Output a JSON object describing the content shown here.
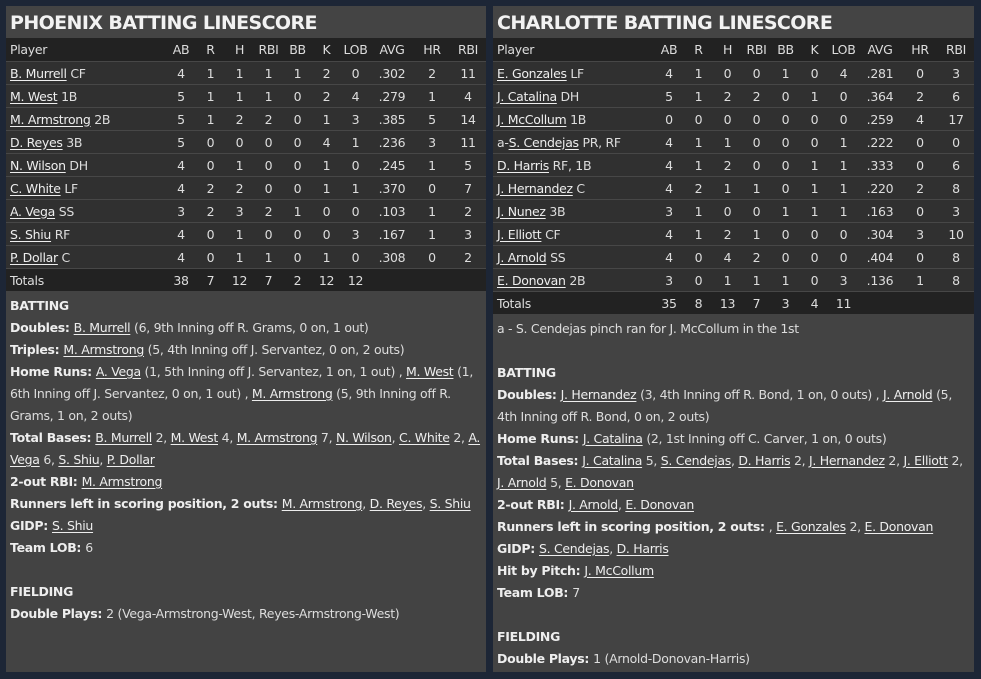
{
  "columns": [
    "Player",
    "AB",
    "R",
    "H",
    "RBI",
    "BB",
    "K",
    "LOB",
    "AVG",
    "HR",
    "RBI"
  ],
  "phoenix": {
    "title": "PHOENIX BATTING LINESCORE",
    "rows": [
      {
        "name": "B. Murrell",
        "pos": "CF",
        "stats": [
          "4",
          "1",
          "1",
          "1",
          "1",
          "2",
          "0",
          ".302",
          "2",
          "11"
        ]
      },
      {
        "name": "M. West",
        "pos": "1B",
        "stats": [
          "5",
          "1",
          "1",
          "1",
          "0",
          "2",
          "4",
          ".279",
          "1",
          "4"
        ]
      },
      {
        "name": "M. Armstrong",
        "pos": "2B",
        "stats": [
          "5",
          "1",
          "2",
          "2",
          "0",
          "1",
          "3",
          ".385",
          "5",
          "14"
        ]
      },
      {
        "name": "D. Reyes",
        "pos": "3B",
        "stats": [
          "5",
          "0",
          "0",
          "0",
          "0",
          "4",
          "1",
          ".236",
          "3",
          "11"
        ]
      },
      {
        "name": "N. Wilson",
        "pos": "DH",
        "stats": [
          "4",
          "0",
          "1",
          "0",
          "0",
          "1",
          "0",
          ".245",
          "1",
          "5"
        ]
      },
      {
        "name": "C. White",
        "pos": "LF",
        "stats": [
          "4",
          "2",
          "2",
          "0",
          "0",
          "1",
          "1",
          ".370",
          "0",
          "7"
        ]
      },
      {
        "name": "A. Vega",
        "pos": "SS",
        "stats": [
          "3",
          "2",
          "3",
          "2",
          "1",
          "0",
          "0",
          ".103",
          "1",
          "2"
        ]
      },
      {
        "name": "S. Shiu",
        "pos": "RF",
        "stats": [
          "4",
          "0",
          "1",
          "0",
          "0",
          "0",
          "3",
          ".167",
          "1",
          "3"
        ]
      },
      {
        "name": "P. Dollar",
        "pos": "C",
        "stats": [
          "4",
          "0",
          "1",
          "1",
          "0",
          "1",
          "0",
          ".308",
          "0",
          "2"
        ]
      }
    ],
    "totals": {
      "label": "Totals",
      "stats": [
        "38",
        "7",
        "12",
        "7",
        "2",
        "12",
        "12",
        "",
        "",
        ""
      ]
    },
    "notes": [
      [
        {
          "b": "BATTING"
        }
      ],
      [
        {
          "b": "Doubles: "
        },
        {
          "l": "B. Murrell"
        },
        {
          "t": " (6, 9th Inning off R. Grams, 0 on, 1 out)"
        }
      ],
      [
        {
          "b": "Triples: "
        },
        {
          "l": "M. Armstrong"
        },
        {
          "t": " (5, 4th Inning off J. Servantez, 0 on, 2 outs)"
        }
      ],
      [
        {
          "b": "Home Runs: "
        },
        {
          "l": "A. Vega"
        },
        {
          "t": " (1, 5th Inning off J. Servantez, 1 on, 1 out) , "
        },
        {
          "l": "M. West"
        },
        {
          "t": " (1, 6th Inning off J. Servantez, 0 on, 1 out) , "
        },
        {
          "l": "M. Armstrong"
        },
        {
          "t": " (5, 9th Inning off R. Grams, 1 on, 2 outs)"
        }
      ],
      [
        {
          "b": "Total Bases: "
        },
        {
          "l": "B. Murrell"
        },
        {
          "t": " 2, "
        },
        {
          "l": "M. West"
        },
        {
          "t": " 4, "
        },
        {
          "l": "M. Armstrong"
        },
        {
          "t": " 7, "
        },
        {
          "l": "N. Wilson"
        },
        {
          "t": ", "
        },
        {
          "l": "C. White"
        },
        {
          "t": " 2, "
        },
        {
          "l": "A. Vega"
        },
        {
          "t": " 6, "
        },
        {
          "l": "S. Shiu"
        },
        {
          "t": ", "
        },
        {
          "l": "P. Dollar"
        }
      ],
      [
        {
          "b": "2-out RBI: "
        },
        {
          "l": "M. Armstrong"
        }
      ],
      [
        {
          "b": "Runners left in scoring position, 2 outs: "
        },
        {
          "l": "M. Armstrong"
        },
        {
          "t": ", "
        },
        {
          "l": "D. Reyes"
        },
        {
          "t": ", "
        },
        {
          "l": "S. Shiu"
        }
      ],
      [
        {
          "b": "GIDP: "
        },
        {
          "l": "S. Shiu"
        }
      ],
      [
        {
          "b": "Team LOB: "
        },
        {
          "t": "6"
        }
      ],
      [],
      [
        {
          "b": "FIELDING"
        }
      ],
      [
        {
          "b": "Double Plays: "
        },
        {
          "t": "2 (Vega-Armstrong-West, Reyes-Armstrong-West)"
        }
      ]
    ]
  },
  "charlotte": {
    "title": "CHARLOTTE BATTING LINESCORE",
    "rows": [
      {
        "name": "E. Gonzales",
        "pos": "LF",
        "stats": [
          "4",
          "1",
          "0",
          "0",
          "1",
          "0",
          "4",
          ".281",
          "0",
          "3"
        ]
      },
      {
        "name": "J. Catalina",
        "pos": "DH",
        "stats": [
          "5",
          "1",
          "2",
          "2",
          "0",
          "1",
          "0",
          ".364",
          "2",
          "6"
        ]
      },
      {
        "name": "J. McCollum",
        "pos": "1B",
        "stats": [
          "0",
          "0",
          "0",
          "0",
          "0",
          "0",
          "0",
          ".259",
          "4",
          "17"
        ]
      },
      {
        "prefix": "a-",
        "name": "S. Cendejas",
        "pos": "PR, RF",
        "sub": true,
        "stats": [
          "4",
          "1",
          "1",
          "0",
          "0",
          "0",
          "1",
          ".222",
          "0",
          "0"
        ]
      },
      {
        "name": "D. Harris",
        "pos": "RF, 1B",
        "stats": [
          "4",
          "1",
          "2",
          "0",
          "0",
          "1",
          "1",
          ".333",
          "0",
          "6"
        ]
      },
      {
        "name": "J. Hernandez",
        "pos": "C",
        "stats": [
          "4",
          "2",
          "1",
          "1",
          "0",
          "1",
          "1",
          ".220",
          "2",
          "8"
        ]
      },
      {
        "name": "J. Nunez",
        "pos": "3B",
        "stats": [
          "3",
          "1",
          "0",
          "0",
          "1",
          "1",
          "1",
          ".163",
          "0",
          "3"
        ]
      },
      {
        "name": "J. Elliott",
        "pos": "CF",
        "stats": [
          "4",
          "1",
          "2",
          "1",
          "0",
          "0",
          "0",
          ".304",
          "3",
          "10"
        ]
      },
      {
        "name": "J. Arnold",
        "pos": "SS",
        "stats": [
          "4",
          "0",
          "4",
          "2",
          "0",
          "0",
          "0",
          ".404",
          "0",
          "8"
        ]
      },
      {
        "name": "E. Donovan",
        "pos": "2B",
        "stats": [
          "3",
          "0",
          "1",
          "1",
          "1",
          "0",
          "3",
          ".136",
          "1",
          "8"
        ]
      }
    ],
    "totals": {
      "label": "Totals",
      "stats": [
        "35",
        "8",
        "13",
        "7",
        "3",
        "4",
        "11",
        "",
        "",
        ""
      ]
    },
    "notes": [
      [
        {
          "t": "a - S. Cendejas pinch ran for J. McCollum in the 1st"
        }
      ],
      [],
      [
        {
          "b": "BATTING"
        }
      ],
      [
        {
          "b": "Doubles: "
        },
        {
          "l": "J. Hernandez"
        },
        {
          "t": " (3, 4th Inning off R. Bond, 1 on, 0 outs) , "
        },
        {
          "l": "J. Arnold"
        },
        {
          "t": " (5, 4th Inning off R. Bond, 0 on, 2 outs)"
        }
      ],
      [
        {
          "b": "Home Runs: "
        },
        {
          "l": "J. Catalina"
        },
        {
          "t": " (2, 1st Inning off C. Carver, 1 on, 0 outs)"
        }
      ],
      [
        {
          "b": "Total Bases: "
        },
        {
          "l": "J. Catalina"
        },
        {
          "t": " 5, "
        },
        {
          "l": "S. Cendejas"
        },
        {
          "t": ", "
        },
        {
          "l": "D. Harris"
        },
        {
          "t": " 2, "
        },
        {
          "l": "J. Hernandez"
        },
        {
          "t": " 2, "
        },
        {
          "l": "J. Elliott"
        },
        {
          "t": " 2, "
        },
        {
          "l": "J. Arnold"
        },
        {
          "t": " 5, "
        },
        {
          "l": "E. Donovan"
        }
      ],
      [
        {
          "b": "2-out RBI: "
        },
        {
          "l": "J. Arnold"
        },
        {
          "t": ", "
        },
        {
          "l": "E. Donovan"
        }
      ],
      [
        {
          "b": "Runners left in scoring position, 2 outs: "
        },
        {
          "t": ", "
        },
        {
          "l": "E. Gonzales"
        },
        {
          "t": " 2, "
        },
        {
          "l": "E. Donovan"
        }
      ],
      [
        {
          "b": "GIDP: "
        },
        {
          "l": "S. Cendejas"
        },
        {
          "t": ", "
        },
        {
          "l": "D. Harris"
        }
      ],
      [
        {
          "b": "Hit by Pitch: "
        },
        {
          "l": "J. McCollum"
        }
      ],
      [
        {
          "b": "Team LOB: "
        },
        {
          "t": "7"
        }
      ],
      [],
      [
        {
          "b": "FIELDING"
        }
      ],
      [
        {
          "b": "Double Plays: "
        },
        {
          "t": "1 (Arnold-Donovan-Harris)"
        }
      ]
    ]
  }
}
